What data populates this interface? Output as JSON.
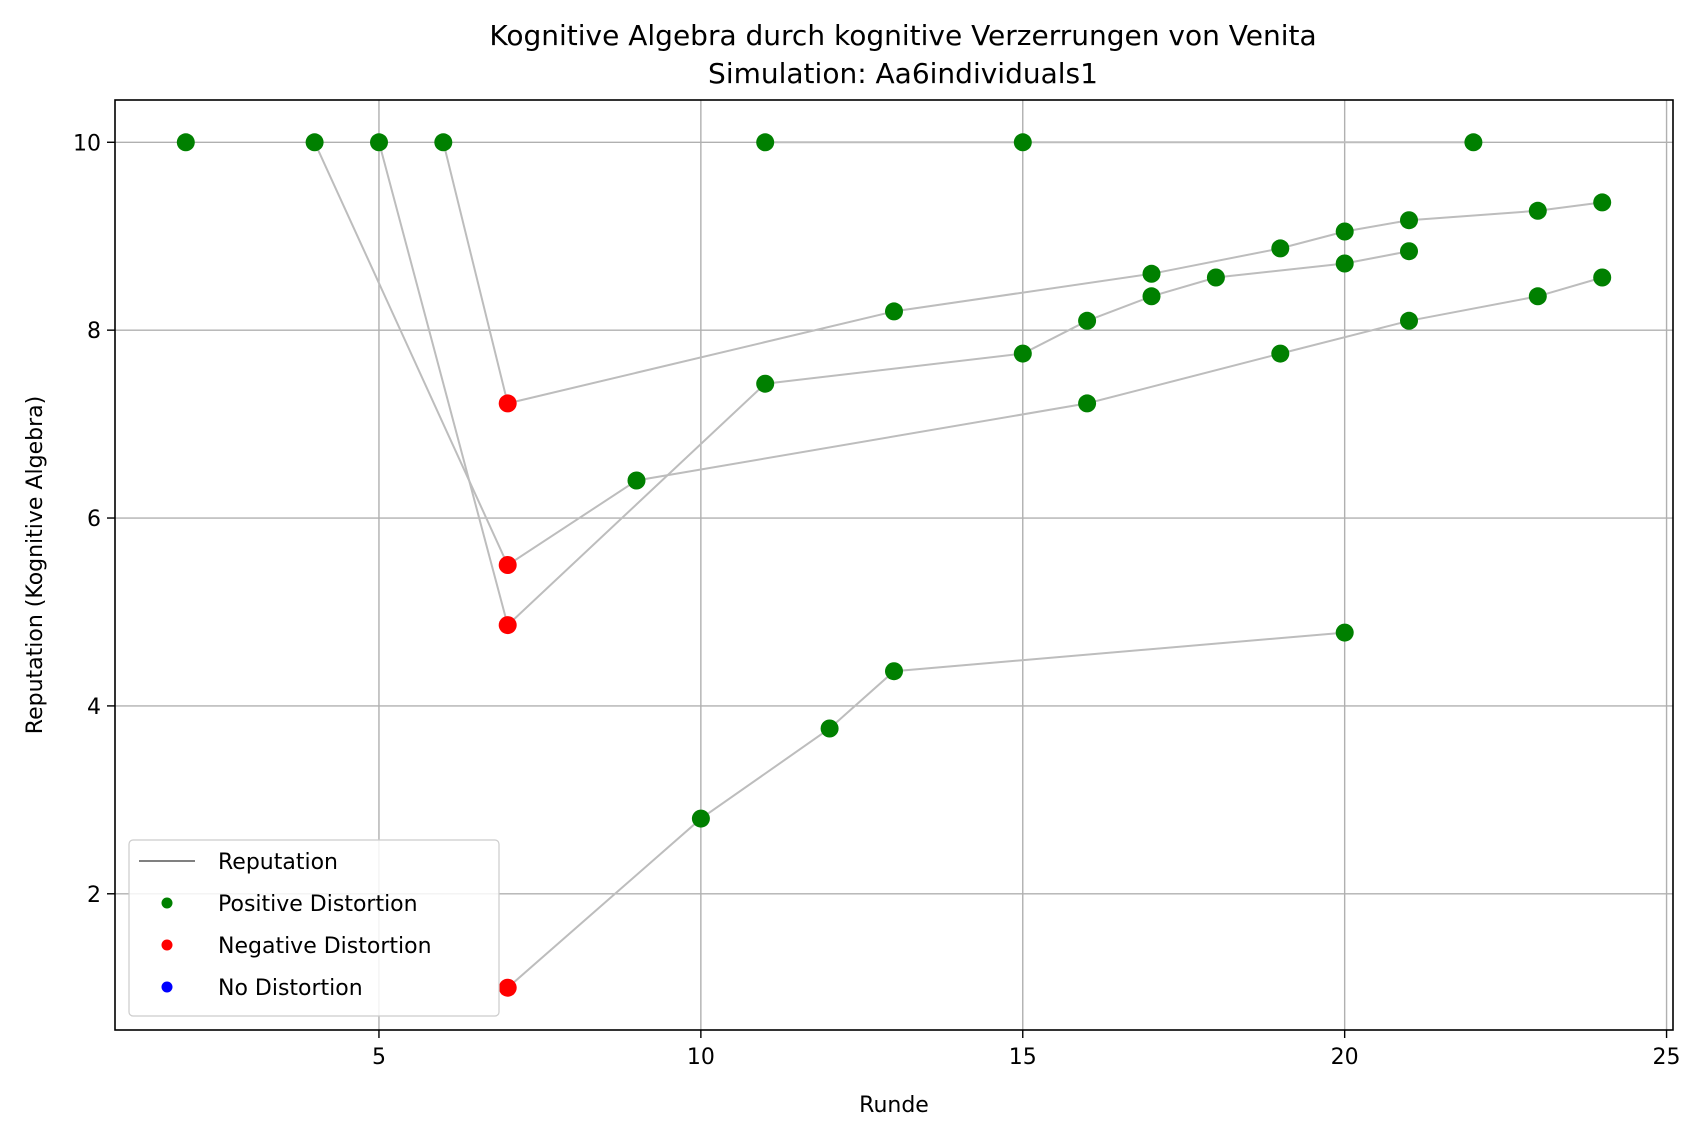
{
  "chart_data": {
    "type": "scatter",
    "title": "Kognitive Algebra durch kognitive Verzerrungen von Venita",
    "subtitle": "Simulation: Aa6individuals1",
    "xlabel": "Runde",
    "ylabel": "Reputation (Kognitive Algebra)",
    "xlim": [
      0.9,
      25.1
    ],
    "ylim": [
      0.55,
      10.45
    ],
    "xticks": [
      5,
      10,
      15,
      20,
      25
    ],
    "yticks": [
      2,
      4,
      6,
      8,
      10
    ],
    "grid": true,
    "legend_position": "lower-left",
    "legend": [
      {
        "label": "Reputation",
        "kind": "line",
        "color": "#808080"
      },
      {
        "label": "Positive Distortion",
        "kind": "marker",
        "color": "#008000"
      },
      {
        "label": "Negative Distortion",
        "kind": "marker",
        "color": "#ff0000"
      },
      {
        "label": "No Distortion",
        "kind": "marker",
        "color": "#0000ff"
      }
    ],
    "colors": {
      "positive": "#008000",
      "negative": "#ff0000",
      "none": "#0000ff",
      "line": "#bdbdbd"
    },
    "series": [
      {
        "points": [
          {
            "x": 2,
            "y": 10.0,
            "d": "positive"
          }
        ]
      },
      {
        "points": [
          {
            "x": 11,
            "y": 10.0,
            "d": "positive"
          },
          {
            "x": 15,
            "y": 10.0,
            "d": "positive"
          },
          {
            "x": 22,
            "y": 10.0,
            "d": "positive"
          }
        ]
      },
      {
        "points": [
          {
            "x": 4,
            "y": 10.0,
            "d": "positive"
          },
          {
            "x": 7,
            "y": 5.5,
            "d": "negative"
          },
          {
            "x": 9,
            "y": 6.4,
            "d": "positive"
          },
          {
            "x": 16,
            "y": 7.22,
            "d": "positive"
          },
          {
            "x": 19,
            "y": 7.75,
            "d": "positive"
          },
          {
            "x": 21,
            "y": 8.1,
            "d": "positive"
          },
          {
            "x": 23,
            "y": 8.36,
            "d": "positive"
          },
          {
            "x": 24,
            "y": 8.56,
            "d": "positive"
          }
        ]
      },
      {
        "points": [
          {
            "x": 5,
            "y": 10.0,
            "d": "positive"
          },
          {
            "x": 7,
            "y": 4.86,
            "d": "negative"
          },
          {
            "x": 11,
            "y": 7.43,
            "d": "positive"
          },
          {
            "x": 15,
            "y": 7.75,
            "d": "positive"
          },
          {
            "x": 16,
            "y": 8.1,
            "d": "positive"
          },
          {
            "x": 17,
            "y": 8.36,
            "d": "positive"
          },
          {
            "x": 18,
            "y": 8.56,
            "d": "positive"
          },
          {
            "x": 20,
            "y": 8.71,
            "d": "positive"
          },
          {
            "x": 21,
            "y": 8.84,
            "d": "positive"
          }
        ]
      },
      {
        "points": [
          {
            "x": 6,
            "y": 10.0,
            "d": "positive"
          },
          {
            "x": 7,
            "y": 7.22,
            "d": "negative"
          },
          {
            "x": 13,
            "y": 8.2,
            "d": "positive"
          },
          {
            "x": 17,
            "y": 8.6,
            "d": "positive"
          },
          {
            "x": 19,
            "y": 8.87,
            "d": "positive"
          },
          {
            "x": 20,
            "y": 9.05,
            "d": "positive"
          },
          {
            "x": 21,
            "y": 9.17,
            "d": "positive"
          },
          {
            "x": 23,
            "y": 9.27,
            "d": "positive"
          },
          {
            "x": 24,
            "y": 9.36,
            "d": "positive"
          }
        ]
      },
      {
        "points": [
          {
            "x": 7,
            "y": 1.0,
            "d": "negative"
          },
          {
            "x": 10,
            "y": 2.8,
            "d": "positive"
          },
          {
            "x": 12,
            "y": 3.76,
            "d": "positive"
          },
          {
            "x": 13,
            "y": 4.37,
            "d": "positive"
          },
          {
            "x": 20,
            "y": 4.78,
            "d": "positive"
          }
        ]
      }
    ]
  }
}
